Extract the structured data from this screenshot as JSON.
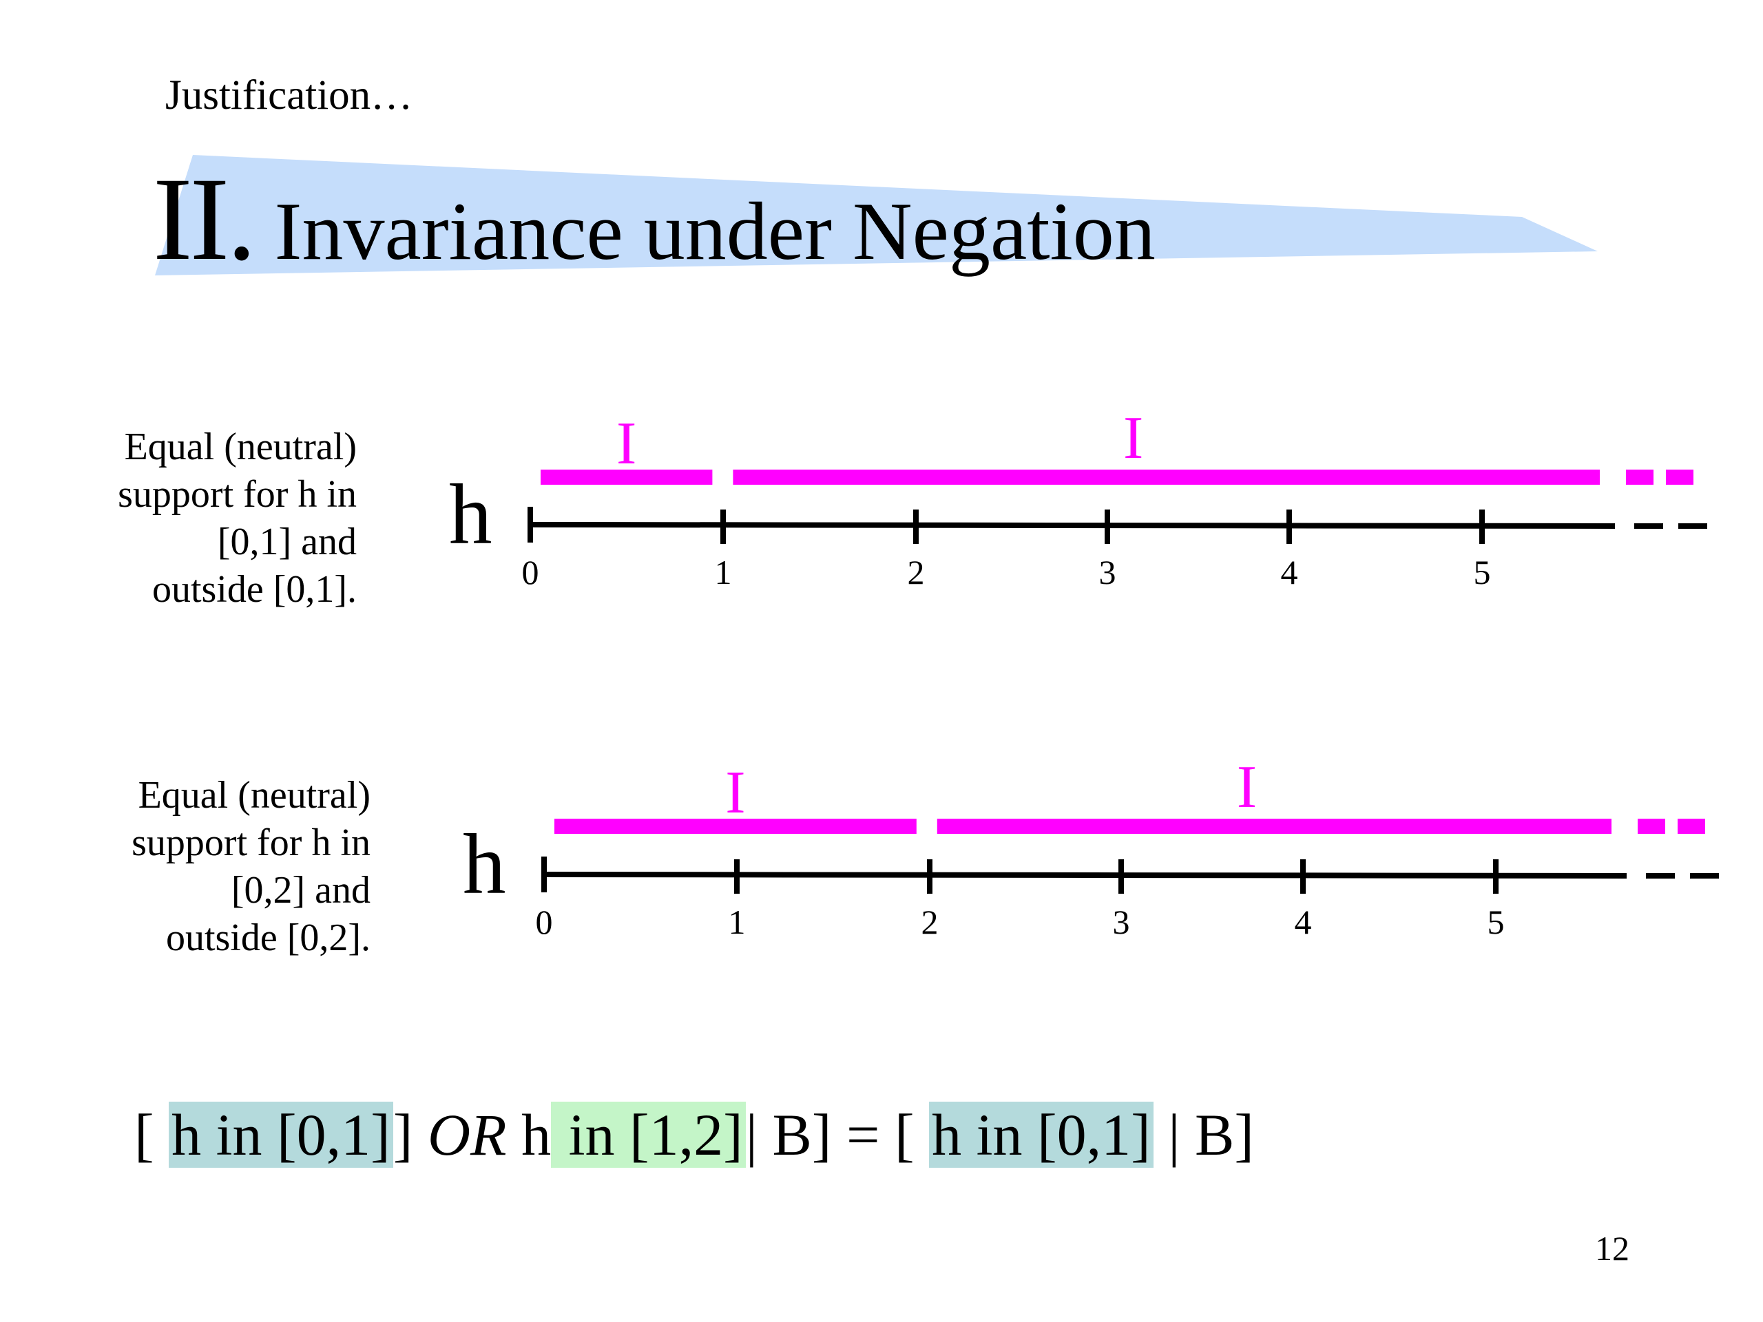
{
  "slide": {
    "kicker": "Justification…",
    "title_numeral": "II.",
    "title_text": "Invariance under Negation",
    "page_number": "12"
  },
  "colors": {
    "title_band": "#c5ddfb",
    "interval_bar": "#ff00ff",
    "axis": "#000000",
    "highlight_teal": "#b4dadc",
    "highlight_green": "#c4f5c8"
  },
  "diagrams": [
    {
      "label_lines": [
        "Equal (neutral)",
        "support for h in",
        "[0,1] and",
        "outside [0,1]."
      ],
      "axis_symbol": "h",
      "ticks": [
        "0",
        "1",
        "2",
        "3",
        "4",
        "5"
      ],
      "interval_label": "I",
      "split_at": 1
    },
    {
      "label_lines": [
        "Equal (neutral)",
        "support for h in",
        "[0,2] and",
        "outside [0,2]."
      ],
      "axis_symbol": "h",
      "ticks": [
        "0",
        "1",
        "2",
        "3",
        "4",
        "5"
      ],
      "interval_label": "I",
      "split_at": 2
    }
  ],
  "equation": {
    "open1": "[ ",
    "part1": "h in [0,1]",
    "close1": "] ",
    "or": "OR",
    "h2": " h",
    "part2": " in [1,2]",
    "tail1": "| B]  = [ ",
    "part3": "h in [0,1]",
    "tail2": " | B]"
  }
}
